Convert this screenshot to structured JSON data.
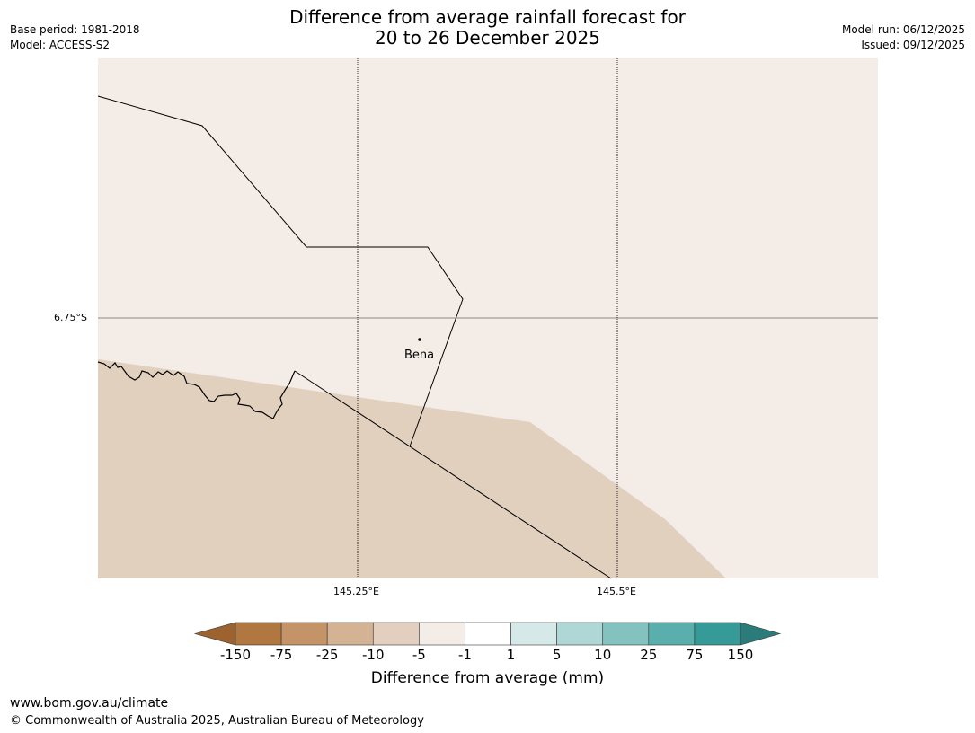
{
  "title_line1": "Difference from average rainfall forecast for",
  "title_line2": "20 to 26 December 2025",
  "base_period": "Base period: 1981-2018",
  "model": "Model: ACCESS-S2",
  "model_run": "Model run: 06/12/2025",
  "issued": "Issued: 09/12/2025",
  "map": {
    "lat_label": "6.75°S",
    "lon_labels": [
      "145.25°E",
      "145.5°E"
    ],
    "place": "Bena"
  },
  "colorbar": {
    "title": "Difference from average (mm)",
    "ticks": [
      "-150",
      "-75",
      "-25",
      "-10",
      "-5",
      "-1",
      "1",
      "5",
      "10",
      "25",
      "75",
      "150"
    ],
    "colors": [
      "#9c6230",
      "#b07840",
      "#c49468",
      "#d4b294",
      "#e2cfbf",
      "#f3ece7",
      "#ffffff",
      "#d6e9e9",
      "#aed7d6",
      "#84c2bf",
      "#5aaeab",
      "#359a98",
      "#2a7b7a"
    ]
  },
  "footer": {
    "url": "www.bom.gov.au/climate",
    "copyright": "© Commonwealth of Australia 2025, Australian Bureau of Meteorology"
  }
}
